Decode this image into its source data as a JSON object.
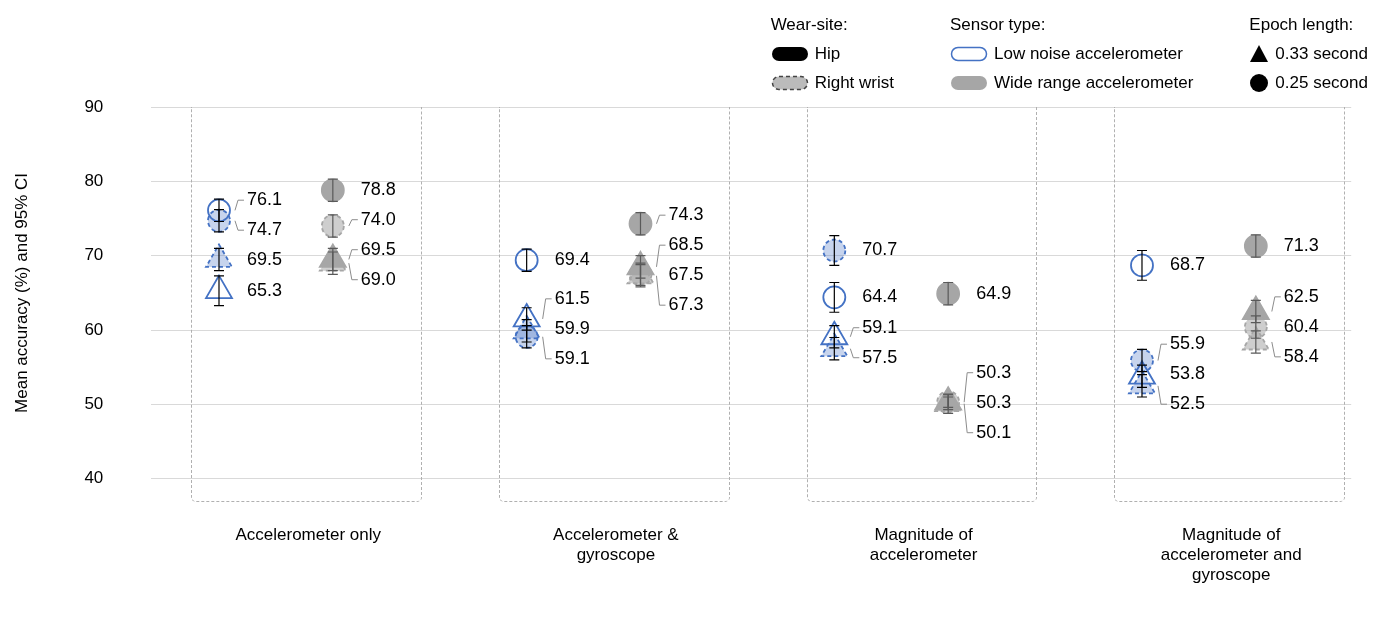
{
  "chart_data": {
    "type": "scatter",
    "ylabel": "Mean accuracy (%) and 95% CI",
    "categories": [
      "Accelerometer only",
      "Accelerometer & gyroscope",
      "Magnitude of accelerometer",
      "Magnitude of accelerometer and gyroscope"
    ],
    "ylim": [
      40,
      90
    ],
    "yticks": [
      40,
      50,
      60,
      70,
      80,
      90
    ],
    "grid": "y",
    "legend": "top right",
    "annotations": [
      "Wear-site:",
      "Hip",
      "Right wrist",
      "Sensor type:",
      "Epoch length:",
      "0.33 second",
      "0.25 second"
    ],
    "series": [
      {
        "name": "Low noise accelerometer",
        "color": "#4472c4",
        "marker": "circle",
        "line_style": "solid",
        "values": [
          76.1,
          69.4,
          64.4,
          68.7
        ],
        "errors": [
          1.5,
          1.5,
          2,
          2
        ],
        "value_labels": [
          "76.1",
          "69.4",
          "64.4",
          "68.7"
        ]
      },
      {
        "color": "#4472c4",
        "marker": "circle",
        "line_style": "dashed",
        "values": [
          74.7,
          59.1,
          70.7,
          55.9
        ],
        "errors": [
          1.5,
          1.5,
          2,
          1.5
        ],
        "value_labels": [
          "74.7",
          "59.1",
          "70.7",
          "55.9"
        ]
      },
      {
        "color": "#4472c4",
        "marker": "triangle",
        "line_style": "solid",
        "values": [
          65.3,
          61.5,
          59.1,
          53.8
        ],
        "errors": [
          2,
          1.5,
          1.5,
          1.5
        ],
        "value_labels": [
          "65.3",
          "61.5",
          "59.1",
          "53.8"
        ]
      },
      {
        "color": "#4472c4",
        "marker": "triangle",
        "line_style": "dashed",
        "values": [
          69.5,
          59.9,
          57.5,
          52.5
        ],
        "errors": [
          1.5,
          1.5,
          1.5,
          1.5
        ],
        "value_labels": [
          "69.5",
          "59.9",
          "57.5",
          "52.5"
        ]
      },
      {
        "name": "Wide range accelerometer",
        "color": "#a6a6a6",
        "marker": "circle",
        "line_style": "solid",
        "values": [
          78.8,
          74.3,
          64.9,
          71.3
        ],
        "errors": [
          1.5,
          1.5,
          1.5,
          1.5
        ],
        "value_labels": [
          "78.8",
          "74.3",
          "64.9",
          "71.3"
        ]
      },
      {
        "color": "#a6a6a6",
        "marker": "circle",
        "line_style": "dashed",
        "values": [
          74.0,
          67.5,
          50.3,
          60.4
        ],
        "errors": [
          1.5,
          1.5,
          1.0,
          1.5
        ],
        "value_labels": [
          "74.0",
          "67.5",
          "50.3",
          "60.4"
        ]
      },
      {
        "color": "#a6a6a6",
        "marker": "triangle",
        "line_style": "solid",
        "values": [
          69.5,
          68.5,
          50.3,
          62.5
        ],
        "errors": [
          1.5,
          1.5,
          0.7,
          1.5
        ],
        "value_labels": [
          "69.5",
          "68.5",
          "50.3",
          "62.5"
        ]
      },
      {
        "color": "#a6a6a6",
        "marker": "triangle",
        "line_style": "dashed",
        "values": [
          69.0,
          67.3,
          50.1,
          58.4
        ],
        "errors": [
          1.5,
          1.5,
          1.3,
          1.5
        ],
        "value_labels": [
          "69.0",
          "67.3",
          "50.1",
          "58.4"
        ]
      }
    ]
  }
}
